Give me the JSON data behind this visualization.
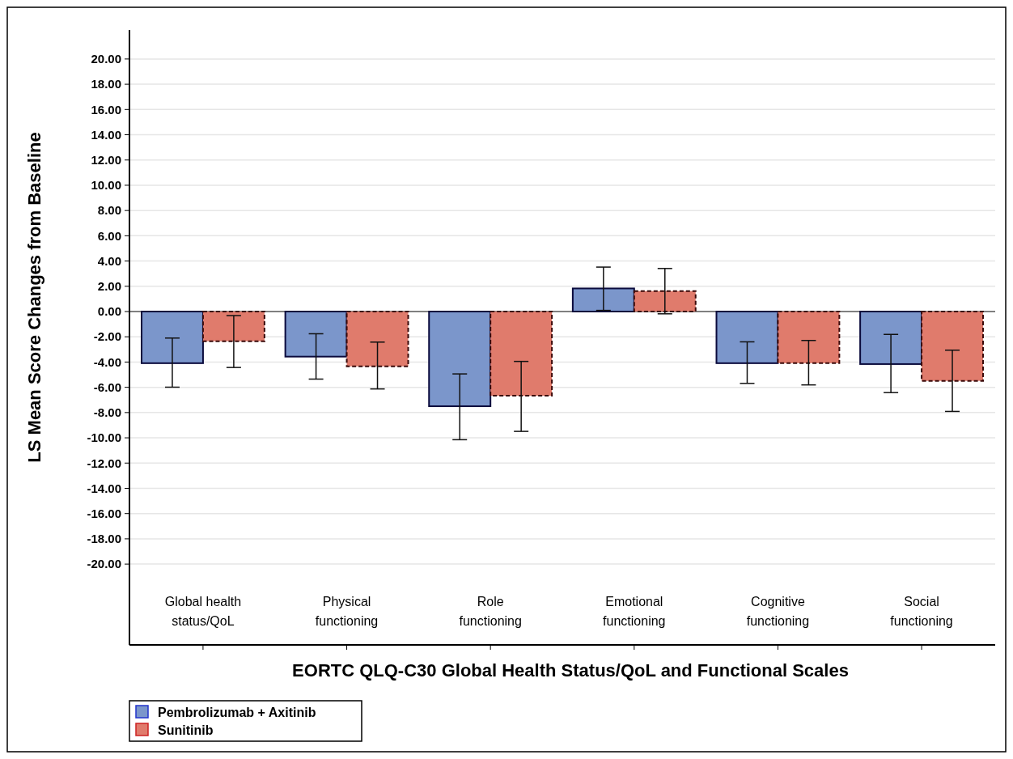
{
  "chart_data": {
    "type": "bar",
    "xlabel": "EORTC QLQ-C30 Global Health Status/QoL and Functional Scales",
    "ylabel": "LS Mean Score Changes from Baseline",
    "categories": [
      "Global health\nstatus/QoL",
      "Physical\nfunctioning",
      "Role\nfunctioning",
      "Emotional\nfunctioning",
      "Cognitive\nfunctioning",
      "Social\nfunctioning"
    ],
    "series": [
      {
        "name": "Pembrolizumab + Axitinib",
        "color": "#7b96cb",
        "line_style": "solid",
        "values": [
          -4.09,
          -3.57,
          -7.5,
          1.83,
          -4.09,
          -4.16
        ],
        "errors": [
          [
            -5.99,
            -2.1
          ],
          [
            -5.35,
            -1.76
          ],
          [
            -10.15,
            -4.94
          ],
          [
            0.09,
            3.52
          ],
          [
            -5.69,
            -2.4
          ],
          [
            -6.42,
            -1.81
          ]
        ]
      },
      {
        "name": "Sunitinib",
        "color": "#e07b6c",
        "line_style": "dashed",
        "values": [
          -2.35,
          -4.34,
          -6.67,
          1.62,
          -4.09,
          -5.49
        ],
        "errors": [
          [
            -4.43,
            -0.32
          ],
          [
            -6.13,
            -2.42
          ],
          [
            -9.49,
            -3.95
          ],
          [
            -0.18,
            3.41
          ],
          [
            -5.81,
            -2.29
          ],
          [
            -7.91,
            -3.06
          ]
        ]
      }
    ],
    "ylim": [
      -26.4,
      22.3
    ],
    "yticks": [
      {
        "value": 20,
        "label": "20.00"
      },
      {
        "value": 18,
        "label": "18.00"
      },
      {
        "value": 16,
        "label": "16.00"
      },
      {
        "value": 14,
        "label": "14.00"
      },
      {
        "value": 12,
        "label": "12.00"
      },
      {
        "value": 10,
        "label": "10.00"
      },
      {
        "value": 8,
        "label": "8.00"
      },
      {
        "value": 6,
        "label": "6.00"
      },
      {
        "value": 4,
        "label": "4.00"
      },
      {
        "value": 2,
        "label": "2.00"
      },
      {
        "value": 0,
        "label": "0.00"
      },
      {
        "value": -2,
        "label": "-2.00"
      },
      {
        "value": -4,
        "label": "-4.00"
      },
      {
        "value": -6,
        "label": "-6.00"
      },
      {
        "value": -8,
        "label": "-8.00"
      },
      {
        "value": -10,
        "label": "-10.00"
      },
      {
        "value": -12,
        "label": "-12.00"
      },
      {
        "value": -14,
        "label": "-14.00"
      },
      {
        "value": -16,
        "label": "-16.00"
      },
      {
        "value": -18,
        "label": "-18.00"
      },
      {
        "value": -20,
        "label": "-20.00"
      }
    ],
    "ref_lines": [
      {
        "axis": "y",
        "value": 0,
        "color": "#808080"
      }
    ],
    "grid": "y",
    "legend": "bottom left"
  }
}
